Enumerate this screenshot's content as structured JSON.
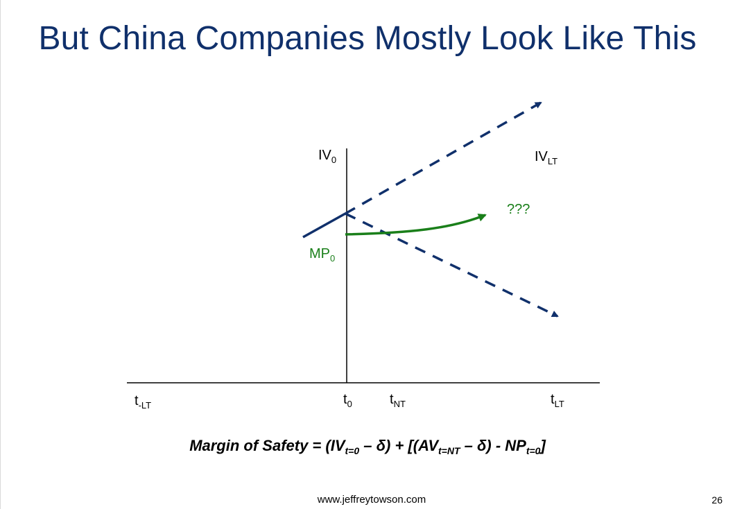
{
  "slide": {
    "title": "But China Companies Mostly Look Like This",
    "footer_url": "www.jeffreytowson.com",
    "page_number": "26"
  },
  "labels": {
    "iv0": {
      "main": "IV",
      "sub": "0"
    },
    "iv_lt": {
      "main": "IV",
      "sub": "LT"
    },
    "mp0": {
      "main": "MP",
      "sub": "0"
    },
    "question": "???",
    "t_minus_lt": {
      "main": "t",
      "sub": "-LT"
    },
    "t0": {
      "main": "t",
      "sub": "0"
    },
    "t_nt": {
      "main": "t",
      "sub": "NT"
    },
    "t_lt": {
      "main": "t",
      "sub": "LT"
    }
  },
  "formula": {
    "lead": "Margin of Safety = (IV",
    "sub1": "t=0",
    "p2": " – δ) + [(AV",
    "sub2": "t=NT",
    "p3": " – δ) - NP",
    "sub3": "t=0",
    "p4": "]"
  },
  "colors": {
    "title": "#10306b",
    "navy_lines": "#10306b",
    "green_curve": "#1a7f1a",
    "axes": "#000000"
  }
}
